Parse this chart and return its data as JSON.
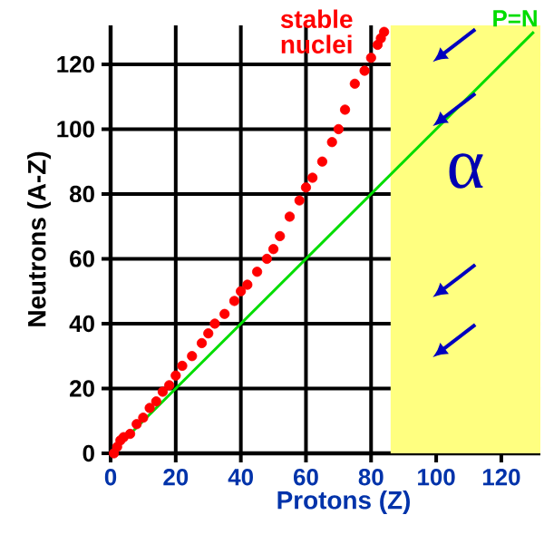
{
  "chart_data": {
    "type": "scatter",
    "xlabel": "Protons  (Z)",
    "ylabel": "Neutrons  (A-Z)",
    "xlim": [
      0,
      132
    ],
    "ylim": [
      0,
      132
    ],
    "xticks": [
      0,
      20,
      40,
      60,
      80,
      100,
      120
    ],
    "yticks": [
      0,
      20,
      40,
      60,
      80,
      100,
      120
    ],
    "grid": true,
    "legend": false,
    "series": [
      {
        "name": "stable nuclei",
        "color": "#ff0000",
        "marker": "circle",
        "x": [
          1,
          2,
          3,
          4,
          6,
          8,
          10,
          12,
          14,
          16,
          18,
          20,
          22,
          25,
          28,
          30,
          32,
          35,
          38,
          40,
          42,
          45,
          48,
          50,
          52,
          55,
          58,
          60,
          62,
          65,
          68,
          70,
          72,
          75,
          78,
          80,
          82,
          83,
          84
        ],
        "values": [
          0,
          2,
          4,
          5,
          6,
          9,
          11,
          14,
          16,
          19,
          21,
          24,
          27,
          30,
          34,
          37,
          40,
          43,
          47,
          50,
          52,
          56,
          60,
          63,
          67,
          73,
          78,
          82,
          85,
          90,
          96,
          100,
          106,
          114,
          118,
          122,
          126,
          128,
          130
        ]
      },
      {
        "name": "P=N",
        "type": "line",
        "color": "#00dd00",
        "x": [
          0,
          130
        ],
        "values": [
          0,
          130
        ]
      }
    ],
    "bands": [
      {
        "axis": "x",
        "from": 86,
        "to": 132,
        "label": "α",
        "color": "#ffff80"
      }
    ]
  }
}
